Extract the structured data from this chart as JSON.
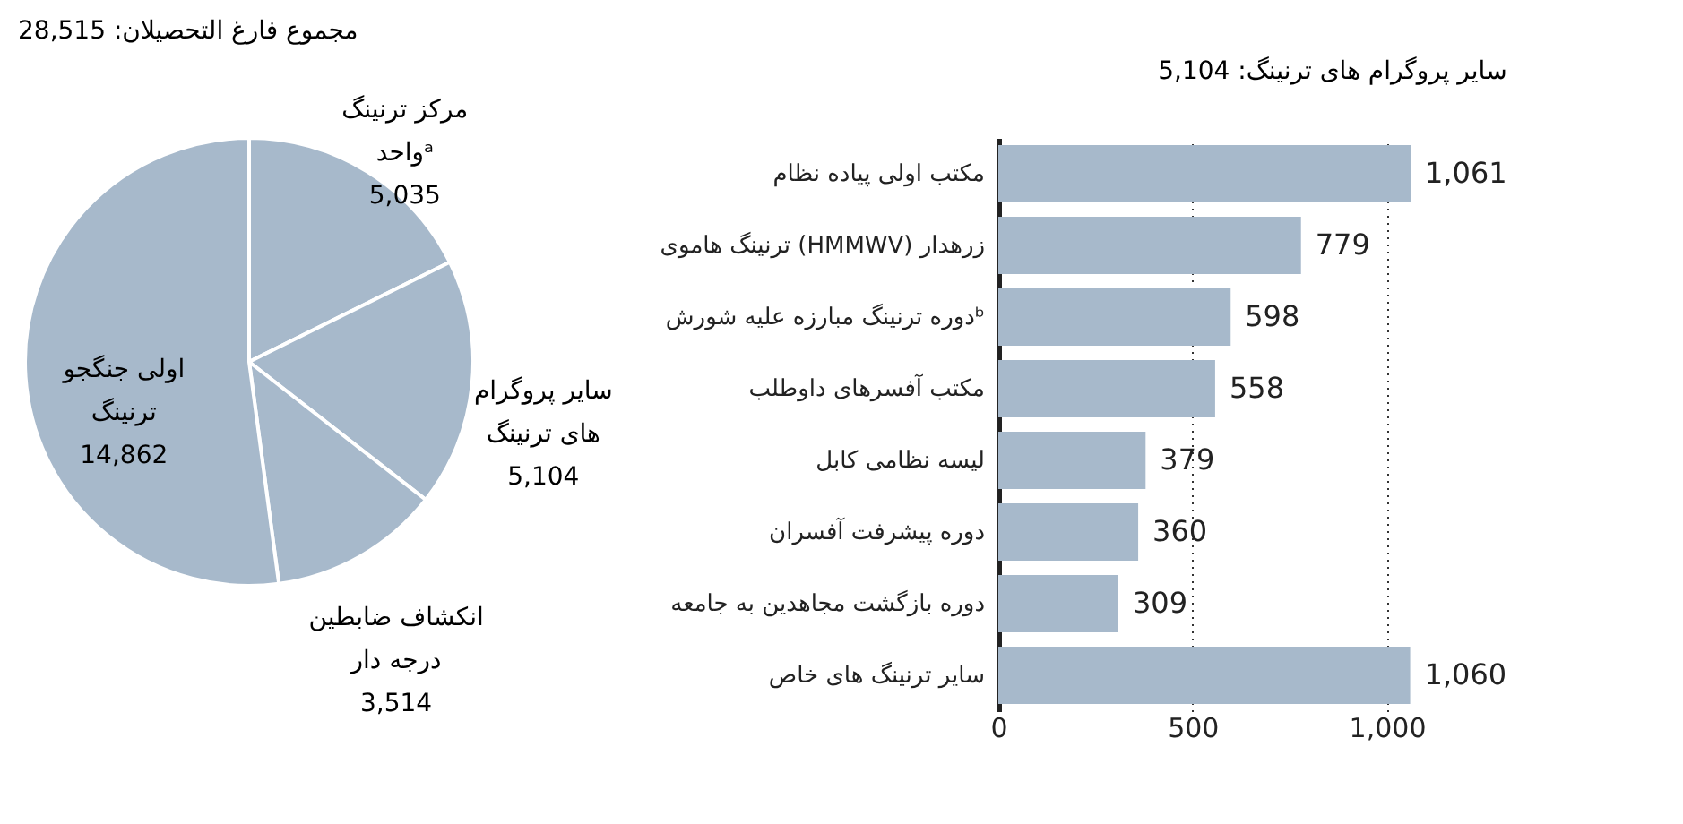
{
  "chart_data": [
    {
      "type": "pie",
      "title": "مجموع فارغ التحصیلان: 28,515",
      "categories": [
        "مرکز ترنینگ واحدᵃ",
        "سایر پروگرام های ترنینگ",
        "انکشاف ضابطین درجه دار",
        "اولی جنگجو ترنینگ"
      ],
      "values": [
        5035,
        5104,
        3514,
        14862
      ],
      "colors": [
        "#a7b9cb",
        "#a7b9cb",
        "#a7b9cb",
        "#a7b9cb"
      ],
      "value_labels": [
        "5,035",
        "5,104",
        "3,514",
        "14,862"
      ]
    },
    {
      "type": "bar",
      "orientation": "horizontal",
      "title": "سایر پروگرام های ترنینگ: 5,104",
      "categories": [
        "مکتب اولی پیاده نظام",
        "ترنینگ هاموی (HMMWV) زرهدار",
        "دوره ترنینگ مبارزه علیه شورشᵇ",
        "مکتب آفسرهای داوطلب",
        "لیسه نظامی کابل",
        "دوره پیشرفت آفسران",
        "دوره بازگشت مجاهدین به جامعه",
        "سایر ترنینگ های خاص"
      ],
      "values": [
        1061,
        779,
        598,
        558,
        379,
        360,
        309,
        1060
      ],
      "color": "#a7b9cb",
      "xlim": [
        0,
        1061
      ],
      "xticks": [
        0,
        500,
        {
          "value": 1000,
          "label": "1,000"
        }
      ],
      "grid": "x",
      "value_labels": [
        "1,061",
        "779",
        "598",
        "558",
        "379",
        "360",
        "309",
        "1,060"
      ]
    }
  ]
}
